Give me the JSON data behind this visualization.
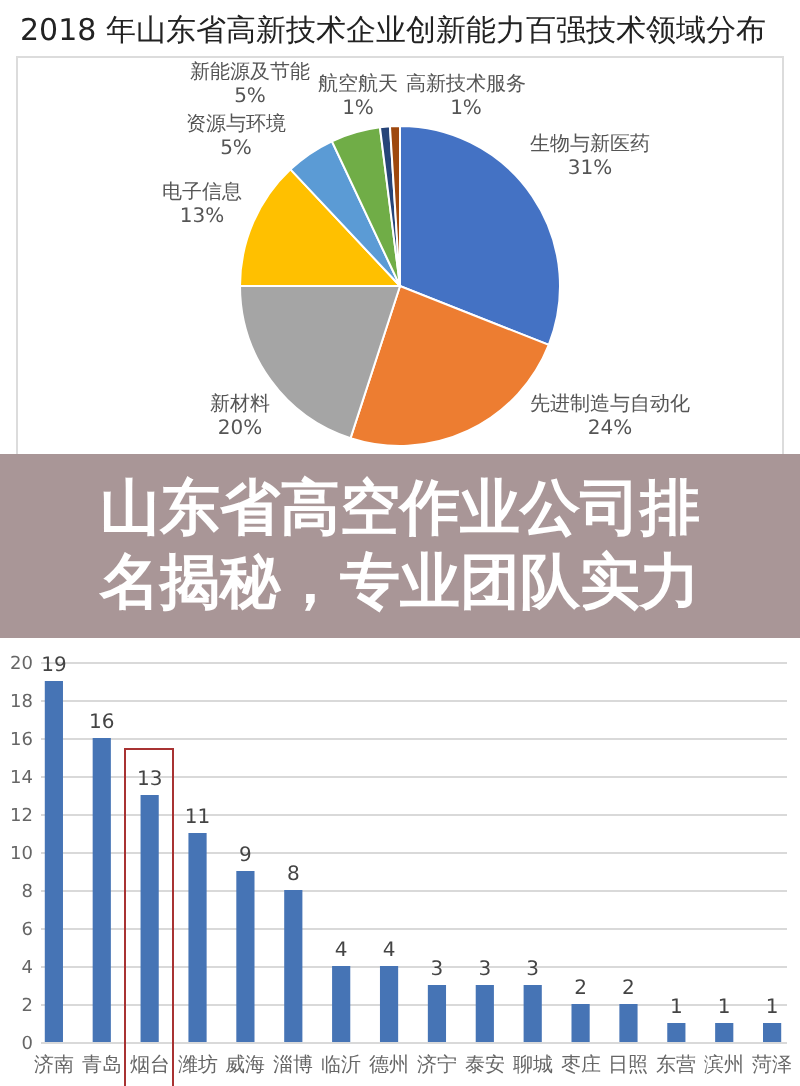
{
  "chart_data": [
    {
      "type": "pie",
      "title": "2018 年山东省高新技术企业创新能力百强技术领域分布",
      "categories": [
        "生物与新医药",
        "先进制造与自动化",
        "新材料",
        "电子信息",
        "资源与环境",
        "新能源及节能",
        "航空航天",
        "高新技术服务"
      ],
      "values": [
        31,
        24,
        20,
        13,
        5,
        5,
        1,
        1
      ],
      "colors": [
        "#4472c4",
        "#ed7d31",
        "#a5a5a5",
        "#ffc000",
        "#5b9bd5",
        "#70ad47",
        "#264478",
        "#9e480e"
      ],
      "value_labels": [
        "31%",
        "24%",
        "20%",
        "13%",
        "5%",
        "5%",
        "1%",
        "1%"
      ]
    },
    {
      "type": "other",
      "title": "山东省高空作业公司排名揭秘，专业团队实力"
    },
    {
      "type": "bar",
      "categories": [
        "济南",
        "青岛",
        "烟台",
        "潍坊",
        "威海",
        "淄博",
        "临沂",
        "德州",
        "济宁",
        "泰安",
        "聊城",
        "枣庄",
        "日照",
        "东营",
        "滨州",
        "菏泽"
      ],
      "values": [
        19,
        16,
        13,
        11,
        9,
        8,
        4,
        4,
        3,
        3,
        3,
        2,
        2,
        1,
        1,
        1
      ],
      "color": "#4674b5",
      "ylim": [
        0,
        20
      ],
      "yticks": [
        0,
        2,
        4,
        6,
        8,
        10,
        12,
        14,
        16,
        18,
        20
      ],
      "grid": "y",
      "data_labels": true
    }
  ]
}
